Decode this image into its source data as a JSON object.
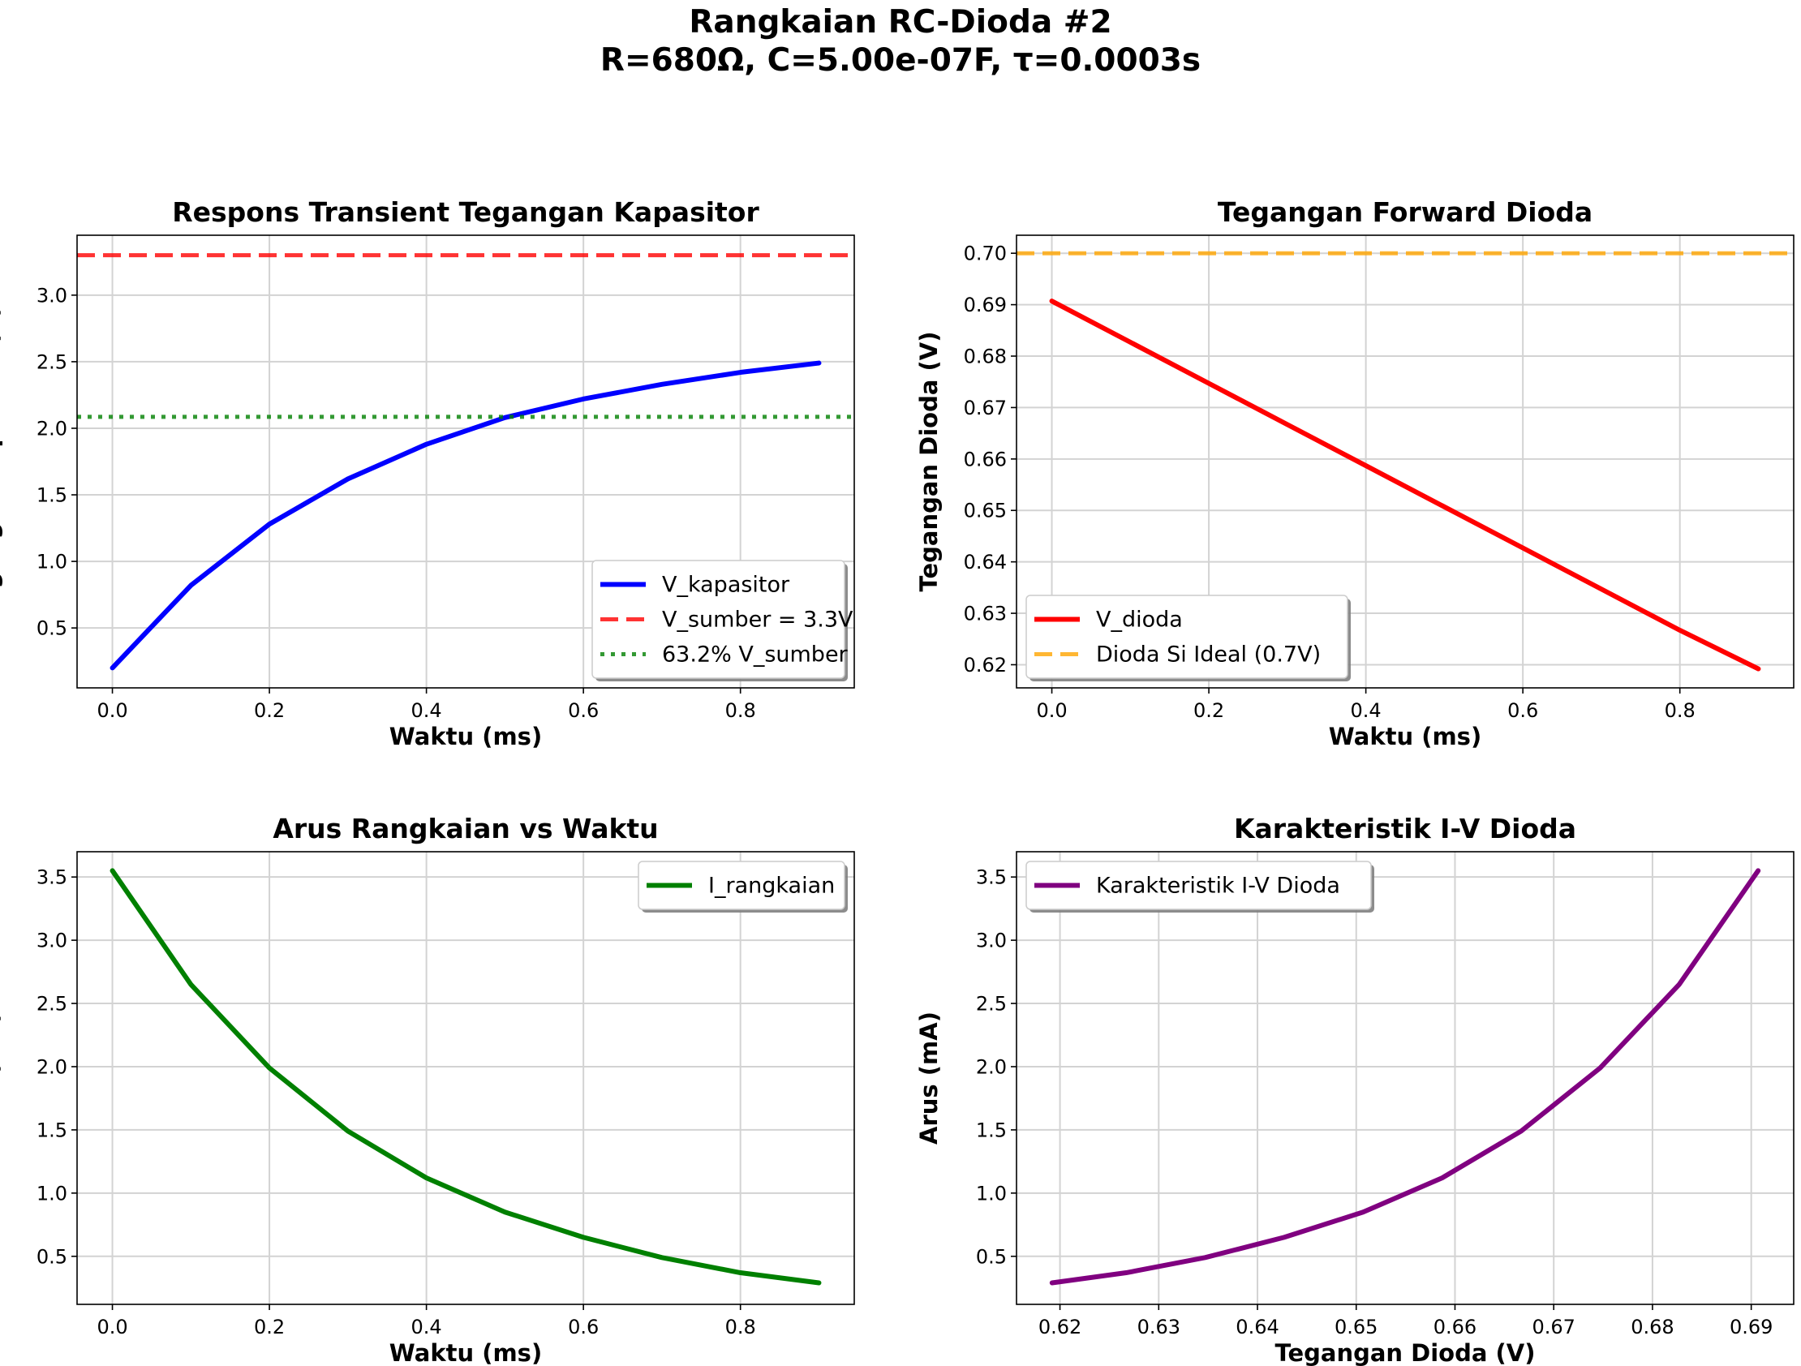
{
  "figure": {
    "title_line1": "Rangkaian RC-Dioda #2",
    "title_line2": "R=680Ω, C=5.00e-07F, τ=0.0003s"
  },
  "chart_data": [
    {
      "type": "line",
      "title": "Respons Transient Tegangan Kapasitor",
      "xlabel": "Waktu (ms)",
      "ylabel": "Tegangan Kapasitor (V)",
      "xlim": [
        -0.045,
        0.945
      ],
      "ylim": [
        0.05,
        3.45
      ],
      "xticks": [
        0.0,
        0.2,
        0.4,
        0.6,
        0.8
      ],
      "xtick_labels": [
        "0.0",
        "0.2",
        "0.4",
        "0.6",
        "0.8"
      ],
      "yticks": [
        0.5,
        1.0,
        1.5,
        2.0,
        2.5,
        3.0
      ],
      "ytick_labels": [
        "0.5",
        "1.0",
        "1.5",
        "2.0",
        "2.5",
        "3.0"
      ],
      "grid": true,
      "legend_position": "lower right",
      "series": [
        {
          "name": "V_kapasitor",
          "style": "solid",
          "color": "#0000ff",
          "x": [
            0.0,
            0.1,
            0.2,
            0.3,
            0.4,
            0.5,
            0.6,
            0.7,
            0.8,
            0.9
          ],
          "y": [
            0.2,
            0.82,
            1.28,
            1.62,
            1.88,
            2.08,
            2.22,
            2.33,
            2.42,
            2.49
          ]
        },
        {
          "name": "V_sumber = 3.3V",
          "style": "hline-dashed",
          "color": "#ff0000",
          "y": 3.3
        },
        {
          "name": "63.2% V_sumber",
          "style": "hline-dotted",
          "color": "#008000",
          "y": 2.0856
        }
      ]
    },
    {
      "type": "line",
      "title": "Tegangan Forward Dioda",
      "xlabel": "Waktu (ms)",
      "ylabel": "Tegangan Dioda (V)",
      "xlim": [
        -0.045,
        0.945
      ],
      "ylim": [
        0.6155,
        0.7035
      ],
      "xticks": [
        0.0,
        0.2,
        0.4,
        0.6,
        0.8
      ],
      "xtick_labels": [
        "0.0",
        "0.2",
        "0.4",
        "0.6",
        "0.8"
      ],
      "yticks": [
        0.62,
        0.63,
        0.64,
        0.65,
        0.66,
        0.67,
        0.68,
        0.69,
        0.7
      ],
      "ytick_labels": [
        "0.62",
        "0.63",
        "0.64",
        "0.65",
        "0.66",
        "0.67",
        "0.68",
        "0.69",
        "0.70"
      ],
      "grid": true,
      "legend_position": "lower left",
      "series": [
        {
          "name": "V_dioda",
          "style": "solid",
          "color": "#ff0000",
          "x": [
            0.0,
            0.1,
            0.2,
            0.3,
            0.4,
            0.5,
            0.6,
            0.7,
            0.8,
            0.9
          ],
          "y": [
            0.6907,
            0.6827,
            0.6747,
            0.6667,
            0.6587,
            0.6507,
            0.6427,
            0.6347,
            0.6267,
            0.6192
          ]
        },
        {
          "name": "Dioda Si Ideal (0.7V)",
          "style": "hline-dashed",
          "color": "#ffa500",
          "y": 0.7
        }
      ]
    },
    {
      "type": "line",
      "title": "Arus Rangkaian vs Waktu",
      "xlabel": "Waktu (ms)",
      "ylabel": "Arus (mA)",
      "xlim": [
        -0.045,
        0.945
      ],
      "ylim": [
        0.12,
        3.7
      ],
      "xticks": [
        0.0,
        0.2,
        0.4,
        0.6,
        0.8
      ],
      "xtick_labels": [
        "0.0",
        "0.2",
        "0.4",
        "0.6",
        "0.8"
      ],
      "yticks": [
        0.5,
        1.0,
        1.5,
        2.0,
        2.5,
        3.0,
        3.5
      ],
      "ytick_labels": [
        "0.5",
        "1.0",
        "1.5",
        "2.0",
        "2.5",
        "3.0",
        "3.5"
      ],
      "grid": true,
      "legend_position": "upper right",
      "series": [
        {
          "name": "I_rangkaian",
          "style": "solid",
          "color": "#008000",
          "x": [
            0.0,
            0.1,
            0.2,
            0.3,
            0.4,
            0.5,
            0.6,
            0.7,
            0.8,
            0.9
          ],
          "y": [
            3.55,
            2.65,
            1.99,
            1.49,
            1.12,
            0.85,
            0.65,
            0.49,
            0.37,
            0.29
          ]
        }
      ]
    },
    {
      "type": "line",
      "title": "Karakteristik I-V Dioda",
      "xlabel": "Tegangan Dioda (V)",
      "ylabel": "Arus (mA)",
      "xlim": [
        0.6156,
        0.6943
      ],
      "ylim": [
        0.12,
        3.7
      ],
      "xticks": [
        0.62,
        0.63,
        0.64,
        0.65,
        0.66,
        0.67,
        0.68,
        0.69
      ],
      "xtick_labels": [
        "0.62",
        "0.63",
        "0.64",
        "0.65",
        "0.66",
        "0.67",
        "0.68",
        "0.69"
      ],
      "yticks": [
        0.5,
        1.0,
        1.5,
        2.0,
        2.5,
        3.0,
        3.5
      ],
      "ytick_labels": [
        "0.5",
        "1.0",
        "1.5",
        "2.0",
        "2.5",
        "3.0",
        "3.5"
      ],
      "grid": true,
      "legend_position": "upper left",
      "series": [
        {
          "name": "Karakteristik I-V Dioda",
          "style": "solid",
          "color": "#800080",
          "x": [
            0.6192,
            0.6267,
            0.6347,
            0.6427,
            0.6507,
            0.6587,
            0.6667,
            0.6747,
            0.6827,
            0.6907
          ],
          "y": [
            0.29,
            0.37,
            0.49,
            0.65,
            0.85,
            1.12,
            1.49,
            1.99,
            2.65,
            3.55
          ]
        }
      ]
    }
  ]
}
